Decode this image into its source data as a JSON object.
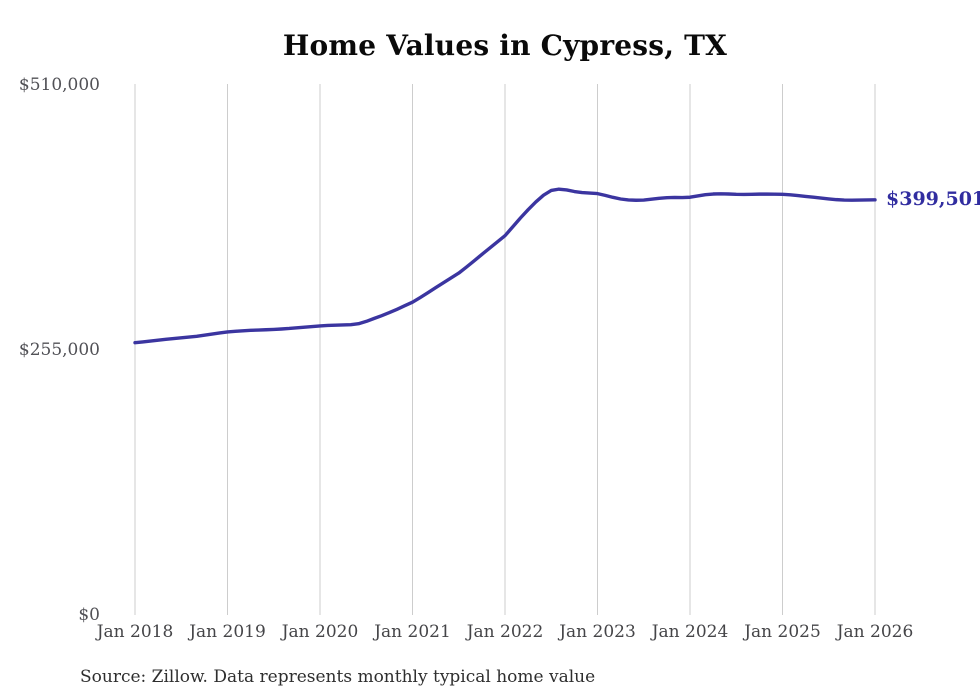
{
  "title": "Home Values in Cypress, TX",
  "end_label": "$399,501",
  "source_note": "Source: Zillow. Data represents monthly typical home value",
  "colors": {
    "line": "#3b35a0",
    "end_label": "#312da0",
    "grid": "#cdcdcd",
    "y_tick_text": "#515156",
    "x_tick_text": "#454548",
    "title_text": "#0a0a0a",
    "source_text": "#2e2e2e"
  },
  "chart_data": {
    "type": "line",
    "title": "Home Values in Cypress, TX",
    "xlabel": "",
    "ylabel": "",
    "x_start": "2018-01",
    "x_end": "2026-01",
    "frequency": "monthly",
    "ylim": [
      0,
      510000
    ],
    "grid": "vertical-only",
    "legend": "none",
    "x_ticks": [
      "Jan 2018",
      "Jan 2019",
      "Jan 2020",
      "Jan 2021",
      "Jan 2022",
      "Jan 2023",
      "Jan 2024",
      "Jan 2025",
      "Jan 2026"
    ],
    "y_ticks": [
      {
        "label": "$0",
        "value": 0
      },
      {
        "label": "$255,000",
        "value": 255000
      },
      {
        "label": "$510,000",
        "value": 510000
      }
    ],
    "end_value": 399501,
    "series": [
      {
        "name": "Typical home value",
        "values": [
          262000,
          262800,
          263600,
          264500,
          265300,
          266000,
          266700,
          267400,
          268200,
          269200,
          270300,
          271400,
          272400,
          273000,
          273500,
          273900,
          274200,
          274500,
          274800,
          275200,
          275700,
          276400,
          277000,
          277600,
          278200,
          278600,
          278900,
          279100,
          279400,
          280300,
          282500,
          285300,
          288000,
          291000,
          294200,
          297600,
          301000,
          305500,
          310200,
          315000,
          319700,
          324400,
          329000,
          334800,
          340800,
          347000,
          353000,
          359000,
          365000,
          373500,
          382000,
          390000,
          397500,
          404000,
          408500,
          409800,
          409000,
          407500,
          406500,
          406000,
          405500,
          403800,
          401900,
          400300,
          399400,
          399100,
          399300,
          400100,
          401000,
          401600,
          401800,
          401700,
          402000,
          403200,
          404400,
          405100,
          405300,
          405100,
          404800,
          404700,
          404800,
          405000,
          405000,
          404900,
          404800,
          404300,
          403600,
          402800,
          402000,
          401200,
          400400,
          399700,
          399300,
          399200,
          399300,
          399450,
          399501
        ]
      }
    ]
  }
}
